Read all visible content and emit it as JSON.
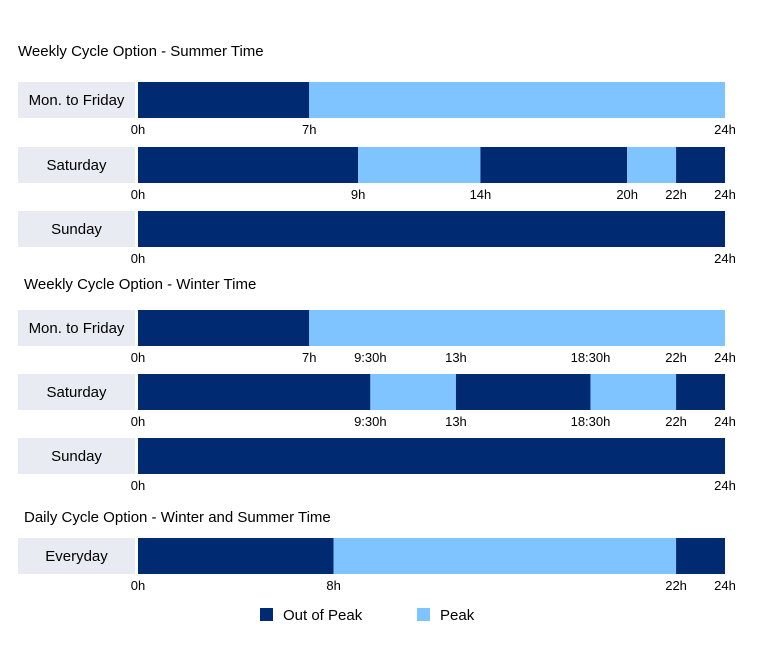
{
  "chart_data": {
    "type": "bar",
    "x_unit": "hours",
    "xlim": [
      0,
      24
    ],
    "colors": {
      "Out of Peak": "#002a72",
      "Peak": "#7fc3ff",
      "label_bg": "#e8ecf2"
    },
    "legend": [
      "Out of Peak",
      "Peak"
    ],
    "sections": [
      {
        "title": "Weekly Cycle Option - Summer Time",
        "rows": [
          {
            "label": "Mon. to Friday",
            "segments": [
              {
                "start": 0,
                "end": 7,
                "type": "Out of Peak"
              },
              {
                "start": 7,
                "end": 24,
                "type": "Peak"
              }
            ],
            "ticks": [
              {
                "value": 0,
                "label": "0h"
              },
              {
                "value": 7,
                "label": "7h"
              },
              {
                "value": 24,
                "label": "24h"
              }
            ]
          },
          {
            "label": "Saturday",
            "segments": [
              {
                "start": 0,
                "end": 9,
                "type": "Out of Peak"
              },
              {
                "start": 9,
                "end": 14,
                "type": "Peak"
              },
              {
                "start": 14,
                "end": 20,
                "type": "Out of Peak"
              },
              {
                "start": 20,
                "end": 22,
                "type": "Peak"
              },
              {
                "start": 22,
                "end": 24,
                "type": "Out of Peak"
              }
            ],
            "ticks": [
              {
                "value": 0,
                "label": "0h"
              },
              {
                "value": 9,
                "label": "9h"
              },
              {
                "value": 14,
                "label": "14h"
              },
              {
                "value": 20,
                "label": "20h"
              },
              {
                "value": 22,
                "label": "22h"
              },
              {
                "value": 24,
                "label": "24h"
              }
            ]
          },
          {
            "label": "Sunday",
            "segments": [
              {
                "start": 0,
                "end": 24,
                "type": "Out of Peak"
              }
            ],
            "ticks": [
              {
                "value": 0,
                "label": "0h"
              },
              {
                "value": 24,
                "label": "24h"
              }
            ]
          }
        ]
      },
      {
        "title": "Weekly Cycle Option - Winter Time",
        "rows": [
          {
            "label": "Mon. to Friday",
            "segments": [
              {
                "start": 0,
                "end": 7,
                "type": "Out of Peak"
              },
              {
                "start": 7,
                "end": 24,
                "type": "Peak"
              }
            ],
            "ticks": [
              {
                "value": 0,
                "label": "0h"
              },
              {
                "value": 7,
                "label": "7h"
              },
              {
                "value": 9.5,
                "label": "9:30h"
              },
              {
                "value": 13,
                "label": "13h"
              },
              {
                "value": 18.5,
                "label": "18:30h"
              },
              {
                "value": 22,
                "label": "22h"
              },
              {
                "value": 24,
                "label": "24h"
              }
            ]
          },
          {
            "label": "Saturday",
            "segments": [
              {
                "start": 0,
                "end": 9.5,
                "type": "Out of Peak"
              },
              {
                "start": 9.5,
                "end": 13,
                "type": "Peak"
              },
              {
                "start": 13,
                "end": 18.5,
                "type": "Out of Peak"
              },
              {
                "start": 18.5,
                "end": 22,
                "type": "Peak"
              },
              {
                "start": 22,
                "end": 24,
                "type": "Out of Peak"
              }
            ],
            "ticks": [
              {
                "value": 0,
                "label": "0h"
              },
              {
                "value": 9.5,
                "label": "9:30h"
              },
              {
                "value": 13,
                "label": "13h"
              },
              {
                "value": 18.5,
                "label": "18:30h"
              },
              {
                "value": 22,
                "label": "22h"
              },
              {
                "value": 24,
                "label": "24h"
              }
            ]
          },
          {
            "label": "Sunday",
            "segments": [
              {
                "start": 0,
                "end": 24,
                "type": "Out of Peak"
              }
            ],
            "ticks": [
              {
                "value": 0,
                "label": "0h"
              },
              {
                "value": 24,
                "label": "24h"
              }
            ]
          }
        ]
      },
      {
        "title": "Daily Cycle Option - Winter and Summer Time",
        "rows": [
          {
            "label": "Everyday",
            "segments": [
              {
                "start": 0,
                "end": 8,
                "type": "Out of Peak"
              },
              {
                "start": 8,
                "end": 22,
                "type": "Peak"
              },
              {
                "start": 22,
                "end": 24,
                "type": "Out of Peak"
              }
            ],
            "ticks": [
              {
                "value": 0,
                "label": "0h"
              },
              {
                "value": 8,
                "label": "8h"
              },
              {
                "value": 22,
                "label": "22h"
              },
              {
                "value": 24,
                "label": "24h"
              }
            ]
          }
        ]
      }
    ]
  }
}
